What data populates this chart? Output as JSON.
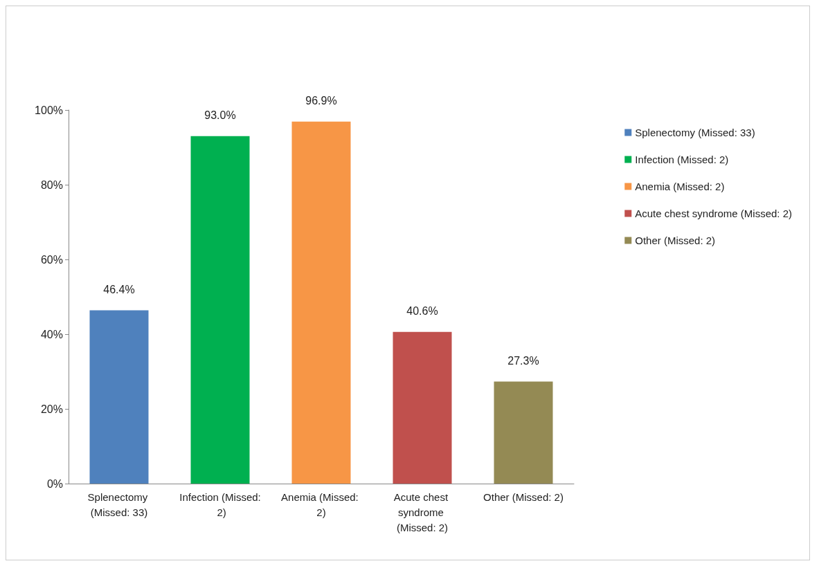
{
  "chart_data": {
    "type": "bar",
    "categories": [
      "Splenectomy (Missed: 33)",
      "Infection (Missed: 2)",
      "Anemia (Missed: 2)",
      "Acute chest syndrome (Missed: 2)",
      "Other (Missed: 2)"
    ],
    "series": [
      {
        "name": "Splenectomy (Missed: 33)",
        "color": "#4f81bd",
        "values": [
          46.4,
          null,
          null,
          null,
          null
        ],
        "value_labels": [
          "46.4%",
          null,
          null,
          null,
          null
        ]
      },
      {
        "name": "Infection (Missed: 2)",
        "color": "#00b050",
        "values": [
          null,
          93.0,
          null,
          null,
          null
        ],
        "value_labels": [
          null,
          "93.0%",
          null,
          null,
          null
        ]
      },
      {
        "name": "Anemia (Missed: 2)",
        "color": "#f79646",
        "values": [
          null,
          null,
          96.9,
          null,
          null
        ],
        "value_labels": [
          null,
          null,
          "96.9%",
          null,
          null
        ]
      },
      {
        "name": "Acute chest syndrome (Missed: 2)",
        "color": "#c0504d",
        "values": [
          null,
          null,
          null,
          40.6,
          null
        ],
        "value_labels": [
          null,
          null,
          null,
          "40.6%",
          null
        ]
      },
      {
        "name": "Other (Missed: 2)",
        "color": "#948a54",
        "values": [
          null,
          null,
          null,
          null,
          27.3
        ],
        "value_labels": [
          null,
          null,
          null,
          null,
          "27.3%"
        ]
      }
    ],
    "ylim": [
      0,
      100
    ],
    "yticks": [
      {
        "value": 0,
        "label": "0%"
      },
      {
        "value": 20,
        "label": "20%"
      },
      {
        "value": 40,
        "label": "40%"
      },
      {
        "value": 60,
        "label": "60%"
      },
      {
        "value": 80,
        "label": "80%"
      },
      {
        "value": 100,
        "label": "100%"
      }
    ],
    "grid": false,
    "legend": "right"
  }
}
